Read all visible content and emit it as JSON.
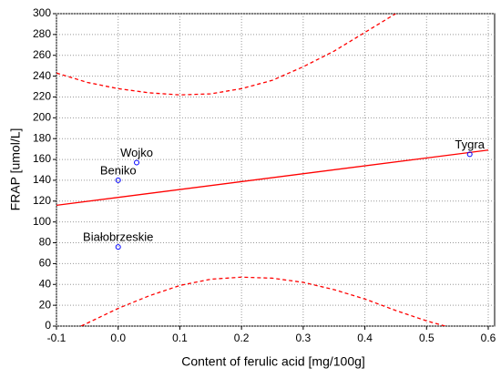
{
  "chart_data": {
    "type": "scatter",
    "x_label": "Content of ferulic acid [mg/100g]",
    "y_label": "FRAP [umol/L]",
    "xlim": [
      -0.1,
      0.6
    ],
    "ylim": [
      0,
      300
    ],
    "xticks": [
      -0.1,
      {
        "value": 0,
        "label": "0.0"
      },
      0.1,
      0.2,
      0.3,
      0.4,
      0.5,
      0.6
    ],
    "yticks": [
      0,
      20,
      40,
      60,
      80,
      100,
      120,
      140,
      160,
      180,
      200,
      220,
      240,
      260,
      280,
      300
    ],
    "grid": true,
    "points": {
      "color": "#0000ff",
      "labels": [
        "Wojko",
        "Beniko",
        "Białobrzeskie",
        "Tygra"
      ],
      "x": [
        0.03,
        0,
        0,
        0.57
      ],
      "values": [
        157,
        140,
        76,
        165
      ]
    },
    "lines": [
      {
        "color": "#ff0000",
        "dashed": false,
        "x": [
          -0.1,
          0.6
        ],
        "values": [
          116,
          169
        ]
      },
      {
        "color": "#ff0000",
        "dashed": true,
        "x": [
          -0.1,
          -0.05,
          0,
          0.05,
          0.1,
          0.15,
          0.2,
          0.25,
          0.3,
          0.35,
          0.4,
          0.45
        ],
        "values": [
          243,
          234,
          228,
          224,
          222,
          223,
          228,
          236,
          249,
          264,
          282,
          300
        ]
      },
      {
        "color": "#ff0000",
        "dashed": true,
        "x": [
          -0.06,
          0,
          0.05,
          0.1,
          0.15,
          0.2,
          0.25,
          0.3,
          0.35,
          0.4,
          0.45,
          0.5,
          0.53
        ],
        "values": [
          0,
          17,
          29,
          39,
          45,
          47,
          46,
          42,
          35,
          26,
          15,
          5,
          0
        ]
      }
    ]
  }
}
